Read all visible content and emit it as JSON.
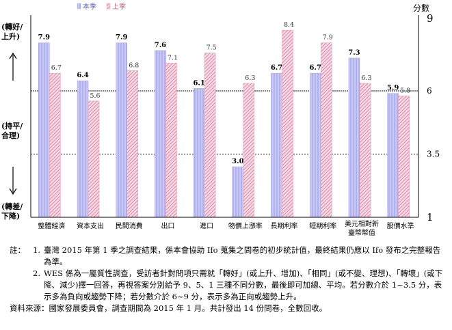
{
  "chart_data": {
    "type": "bar",
    "categories": [
      "整體經濟",
      "資本支出",
      "民間消費",
      "出口",
      "進口",
      "物價上漲率",
      "長期利率",
      "短期利率",
      "美元相對新臺幣幣值",
      "股價水準"
    ],
    "category_lines": [
      [
        "整體經濟"
      ],
      [
        "資本支出"
      ],
      [
        "民間消費"
      ],
      [
        "出口"
      ],
      [
        "進口"
      ],
      [
        "物價上漲率"
      ],
      [
        "長期利率"
      ],
      [
        "短期利率"
      ],
      [
        "美元相對新",
        "臺幣幣值"
      ],
      [
        "股價水準"
      ]
    ],
    "series": [
      {
        "name": "本季",
        "values": [
          7.9,
          6.4,
          7.9,
          7.6,
          6.1,
          3.0,
          6.7,
          6.7,
          7.3,
          5.9
        ],
        "color": "#b0b0f0"
      },
      {
        "name": "上季",
        "values": [
          6.7,
          5.6,
          6.8,
          7.1,
          7.5,
          6.3,
          8.4,
          7.9,
          6.3,
          5.8
        ],
        "color": "#e8a0b8"
      }
    ],
    "ylim": [
      1,
      9
    ],
    "ylabel": "分數",
    "y_ticks": [
      "9",
      "6",
      "3.5",
      "1"
    ],
    "reference_lines": [
      6,
      3.5
    ],
    "legend_position": "top-left",
    "left_labels": {
      "top": [
        "(轉好/",
        "上升)"
      ],
      "middle": [
        "(持平/",
        "合理)"
      ],
      "bottom": [
        "(轉差/",
        "下降)"
      ]
    }
  },
  "notes": {
    "label": "註：",
    "items": [
      {
        "num": "1.",
        "text": "臺灣 2015 年第 1 季之調查結果，係本會協助 Ifo 蒐集之問卷的初步統計值，最終結果仍應以 Ifo 發布之完整報告為準。"
      },
      {
        "num": "2.",
        "text": "WES 係為一屬質性調查，受訪者針對問項只需就「轉好」(或上升、增加)、「相同」(或不變、理想)、「轉壞」(或下降、減少)擇一回答，再視答案分別給予 9、5、1 三種不同分數，最後即可加總、平均。若分數介於 1~3.5 分，表示多為負向或趨勢下降；若分數介於 6~9 分，表示多為正向或趨勢上升。"
      }
    ],
    "source": "資料來源：國家發展委員會，調查期間為 2015 年 1 月。共計發出 14 份問卷，全數回收。"
  }
}
